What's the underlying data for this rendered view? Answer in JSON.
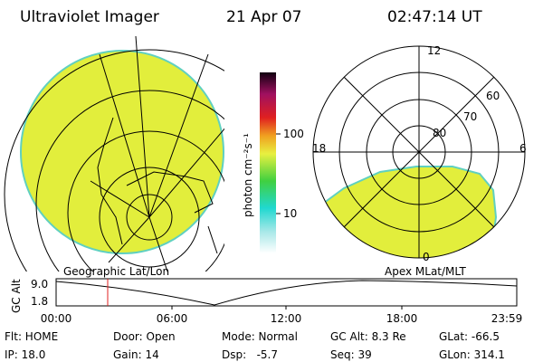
{
  "header": {
    "title": "Ultraviolet Imager",
    "date": "21 Apr 07",
    "time": "02:47:14 UT"
  },
  "left_panel": {
    "label": "Geographic Lat/Lon"
  },
  "right_panel": {
    "label": "Apex MLat/MLT",
    "mlt_labels": [
      "12",
      "6",
      "0",
      "18"
    ],
    "mlat_labels": [
      "60",
      "70",
      "80"
    ]
  },
  "colorbar": {
    "unit": "photon cm⁻²s⁻¹",
    "ticks": [
      "100",
      "10"
    ]
  },
  "timeline": {
    "axis_label": "GC Alt",
    "y_labels": [
      "9.0",
      "1.8"
    ],
    "x_labels": [
      "00:00",
      "06:00",
      "12:00",
      "18:00",
      "23:59"
    ]
  },
  "footer": {
    "rows": [
      [
        "Flt: HOME",
        "Door: Open",
        "Mode: Normal",
        "GC Alt: 8.3 Re",
        "GLat: -66.5"
      ],
      [
        "IP: 18.0",
        "Gain: 14",
        "Dsp:   -5.7",
        "Seq: 39",
        "GLon: 314.1"
      ]
    ]
  }
}
